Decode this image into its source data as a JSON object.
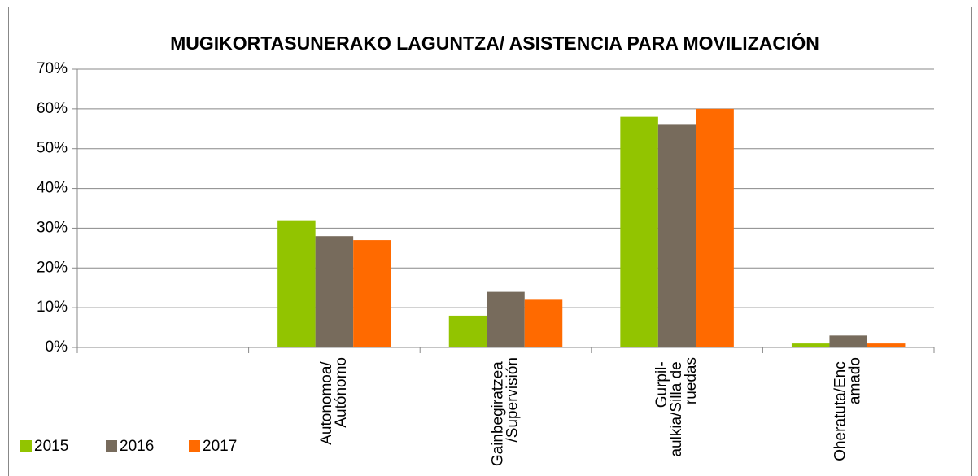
{
  "chart_data": {
    "type": "bar",
    "title": "MUGIKORTASUNERAKO LAGUNTZA/ ASISTENCIA PARA MOVILIZACIÓN",
    "categories": [
      null,
      "Autonomoa/ Autónomo",
      "Gainbegiratzea /Supervisión",
      "Gurpil- aulkia/Silla de ruedas",
      "Oheratuta/Enc amado"
    ],
    "series": [
      {
        "name": "2015",
        "color": "#92c400",
        "values": [
          null,
          32,
          8,
          58,
          1
        ]
      },
      {
        "name": "2016",
        "color": "#776b5c",
        "values": [
          null,
          28,
          14,
          56,
          3
        ]
      },
      {
        "name": "2017",
        "color": "#ff6a00",
        "values": [
          null,
          27,
          12,
          60,
          1
        ]
      }
    ],
    "ylim": [
      0,
      70
    ],
    "yticks": [
      {
        "value": 0,
        "label": "0%"
      },
      {
        "value": 10,
        "label": "10%"
      },
      {
        "value": 20,
        "label": "20%"
      },
      {
        "value": 30,
        "label": "30%"
      },
      {
        "value": 40,
        "label": "40%"
      },
      {
        "value": 50,
        "label": "50%"
      },
      {
        "value": 60,
        "label": "60%"
      },
      {
        "value": 70,
        "label": "70%"
      }
    ],
    "grid": true,
    "legend": "bottom-left"
  }
}
